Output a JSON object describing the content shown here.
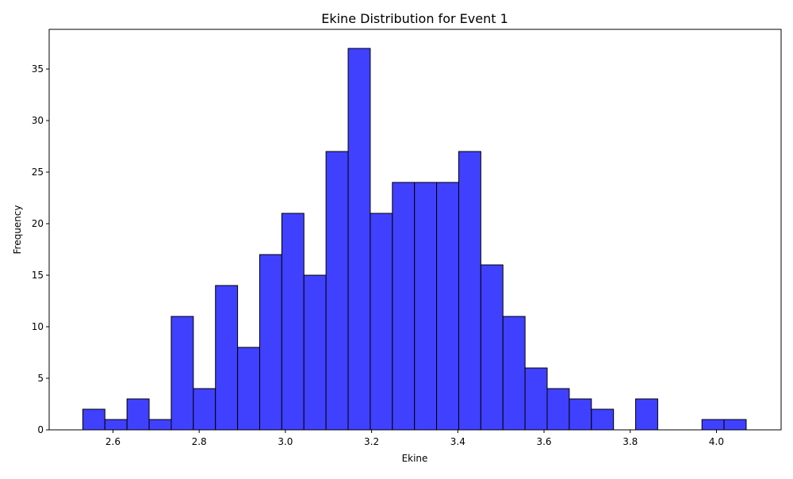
{
  "chart_data": {
    "type": "bar",
    "title": "Ekine Distribution for Event 1",
    "xlabel": "Ekine",
    "ylabel": "Frequency",
    "bin_start": 2.53,
    "bin_width": 0.0513,
    "counts": [
      2,
      1,
      3,
      1,
      11,
      4,
      14,
      8,
      17,
      21,
      15,
      27,
      37,
      21,
      24,
      24,
      24,
      27,
      16,
      11,
      6,
      4,
      3,
      2,
      0,
      3,
      0,
      0,
      1,
      1
    ],
    "xlim": [
      2.452,
      4.15
    ],
    "ylim": [
      0,
      38.85
    ],
    "xticks": [
      2.6,
      2.8,
      3.0,
      3.2,
      3.4,
      3.6,
      3.8,
      4.0
    ],
    "xtick_labels": [
      "2.6",
      "2.8",
      "3.0",
      "3.2",
      "3.4",
      "3.6",
      "3.8",
      "4.0"
    ],
    "yticks": [
      0,
      5,
      10,
      15,
      20,
      25,
      30,
      35
    ],
    "ytick_labels": [
      "0",
      "5",
      "10",
      "15",
      "20",
      "25",
      "30",
      "35"
    ],
    "bar_color": "#4040ff",
    "edge_color": "#000000",
    "grid": false,
    "legend": "none"
  }
}
